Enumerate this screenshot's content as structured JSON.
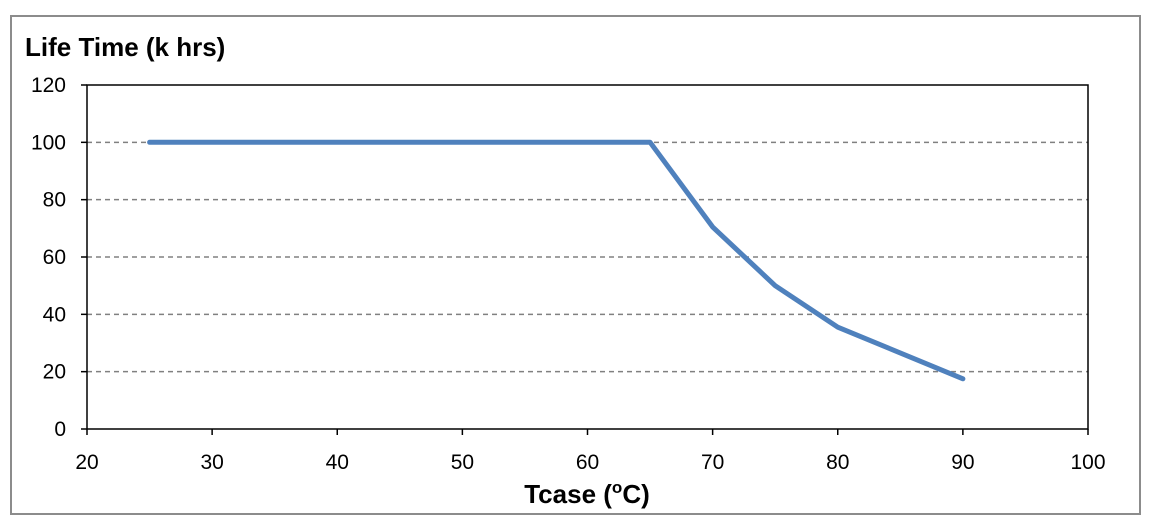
{
  "chart_data": {
    "type": "line",
    "ylabel": "Life Time (k hrs)",
    "xlabel_main": "Tcase (",
    "xlabel_sup": "o",
    "xlabel_end": "C)",
    "xlim": [
      20,
      100
    ],
    "ylim": [
      0,
      120
    ],
    "x_ticks": [
      "20",
      "30",
      "40",
      "50",
      "60",
      "70",
      "80",
      "90",
      "100"
    ],
    "y_ticks": [
      "0",
      "20",
      "40",
      "60",
      "80",
      "100",
      "120"
    ],
    "grid": "horizontal dashed",
    "legend": "none",
    "series": [
      {
        "color": "#4f81bd",
        "x": [
          25,
          65,
          70,
          75,
          80,
          90
        ],
        "y": [
          100,
          100,
          70.5,
          50,
          35.5,
          17.5
        ]
      }
    ]
  }
}
